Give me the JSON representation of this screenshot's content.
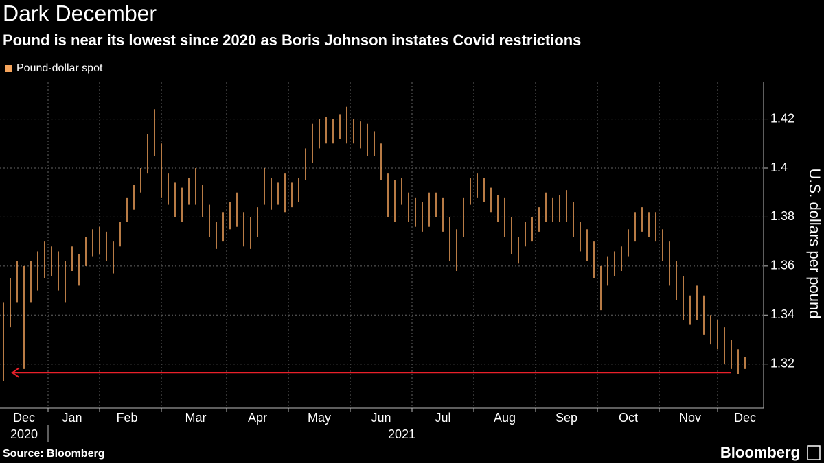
{
  "chart_data": {
    "type": "ohlc",
    "title": "Dark December",
    "subtitle": "Pound is near its lowest since 2020 as Boris Johnson instates Covid restrictions",
    "y_label": "U.S. dollars per pound",
    "source": "Source: Bloomberg",
    "brand": "Bloomberg",
    "legend_position": "top-left",
    "grid": true,
    "ylim": [
      1.302,
      1.435
    ],
    "yticks": [
      1.32,
      1.34,
      1.36,
      1.38,
      1.4,
      1.42
    ],
    "categories": [
      null,
      null,
      null,
      "Dec",
      null,
      null,
      null,
      null,
      null,
      null,
      "Jan",
      null,
      null,
      null,
      null,
      null,
      null,
      null,
      "Feb",
      null,
      null,
      null,
      null,
      null,
      null,
      null,
      null,
      null,
      "Mar",
      null,
      null,
      null,
      null,
      null,
      null,
      null,
      null,
      "Apr",
      null,
      null,
      null,
      null,
      null,
      null,
      null,
      null,
      "May",
      null,
      null,
      null,
      null,
      null,
      null,
      null,
      null,
      "Jun",
      null,
      null,
      null,
      null,
      null,
      null,
      null,
      null,
      "Jul",
      null,
      null,
      null,
      null,
      null,
      null,
      null,
      null,
      "Aug",
      null,
      null,
      null,
      null,
      null,
      null,
      null,
      null,
      "Sep",
      null,
      null,
      null,
      null,
      null,
      null,
      null,
      null,
      "Oct",
      null,
      null,
      null,
      null,
      null,
      null,
      null,
      null,
      "Nov",
      null,
      null,
      null,
      null,
      null,
      null,
      null,
      "Dec"
    ],
    "categories2": [
      null,
      null,
      null,
      "2020",
      null,
      null,
      null,
      null,
      null,
      null,
      null,
      null,
      null,
      null,
      null,
      null,
      null,
      null,
      null,
      null,
      null,
      null,
      null,
      null,
      null,
      null,
      null,
      null,
      null,
      null,
      null,
      null,
      null,
      null,
      null,
      null,
      null,
      null,
      null,
      null,
      null,
      null,
      null,
      null,
      null,
      null,
      null,
      null,
      null,
      null,
      null,
      null,
      null,
      null,
      null,
      null,
      null,
      null,
      "2021",
      null,
      null,
      null,
      null,
      null,
      null,
      null,
      null,
      null,
      null,
      null,
      null,
      null,
      null,
      null,
      null,
      null,
      null,
      null,
      null,
      null,
      null,
      null,
      null,
      null,
      null,
      null,
      null,
      null,
      null,
      null,
      null,
      null,
      null,
      null,
      null,
      null,
      null,
      null,
      null,
      null,
      null,
      null,
      null,
      null,
      null,
      null,
      null,
      null,
      null
    ],
    "series": [
      {
        "name": "Pound-dollar spot",
        "color": "#f5a45c",
        "high": [
          1.345,
          1.355,
          1.362,
          1.36,
          1.362,
          1.366,
          1.37,
          1.368,
          1.366,
          1.362,
          1.368,
          1.365,
          1.372,
          1.375,
          1.376,
          1.374,
          1.37,
          1.378,
          1.388,
          1.393,
          1.4,
          1.414,
          1.424,
          1.41,
          1.398,
          1.394,
          1.392,
          1.396,
          1.4,
          1.393,
          1.385,
          1.378,
          1.382,
          1.386,
          1.39,
          1.382,
          1.38,
          1.384,
          1.4,
          1.396,
          1.394,
          1.398,
          1.394,
          1.396,
          1.408,
          1.418,
          1.42,
          1.421,
          1.42,
          1.422,
          1.425,
          1.42,
          1.419,
          1.418,
          1.415,
          1.41,
          1.398,
          1.395,
          1.396,
          1.39,
          1.388,
          1.386,
          1.39,
          1.39,
          1.388,
          1.38,
          1.375,
          1.388,
          1.396,
          1.398,
          1.396,
          1.392,
          1.389,
          1.388,
          1.38,
          1.372,
          1.378,
          1.38,
          1.384,
          1.39,
          1.388,
          1.389,
          1.391,
          1.386,
          1.378,
          1.375,
          1.37,
          1.36,
          1.364,
          1.366,
          1.368,
          1.375,
          1.382,
          1.384,
          1.382,
          1.382,
          1.375,
          1.37,
          1.362,
          1.356,
          1.348,
          1.352,
          1.348,
          1.34,
          1.338,
          1.335,
          1.33,
          1.326,
          1.323
        ],
        "low": [
          1.313,
          1.335,
          1.345,
          1.318,
          1.345,
          1.35,
          1.355,
          1.356,
          1.35,
          1.345,
          1.358,
          1.352,
          1.36,
          1.364,
          1.365,
          1.362,
          1.357,
          1.368,
          1.378,
          1.383,
          1.39,
          1.398,
          1.405,
          1.388,
          1.385,
          1.38,
          1.378,
          1.385,
          1.385,
          1.38,
          1.372,
          1.367,
          1.37,
          1.375,
          1.376,
          1.368,
          1.367,
          1.372,
          1.385,
          1.383,
          1.385,
          1.382,
          1.384,
          1.386,
          1.395,
          1.402,
          1.408,
          1.41,
          1.41,
          1.412,
          1.41,
          1.41,
          1.408,
          1.405,
          1.405,
          1.395,
          1.38,
          1.378,
          1.385,
          1.378,
          1.376,
          1.374,
          1.376,
          1.38,
          1.374,
          1.362,
          1.358,
          1.372,
          1.385,
          1.388,
          1.386,
          1.382,
          1.378,
          1.372,
          1.365,
          1.361,
          1.368,
          1.37,
          1.374,
          1.378,
          1.378,
          1.378,
          1.378,
          1.372,
          1.366,
          1.362,
          1.355,
          1.342,
          1.352,
          1.356,
          1.358,
          1.364,
          1.37,
          1.374,
          1.372,
          1.37,
          1.362,
          1.352,
          1.346,
          1.338,
          1.336,
          1.338,
          1.332,
          1.328,
          1.326,
          1.32,
          1.318,
          1.316,
          1.318
        ]
      }
    ],
    "reference_line": {
      "value": 1.3165,
      "color": "#e8202a"
    }
  }
}
